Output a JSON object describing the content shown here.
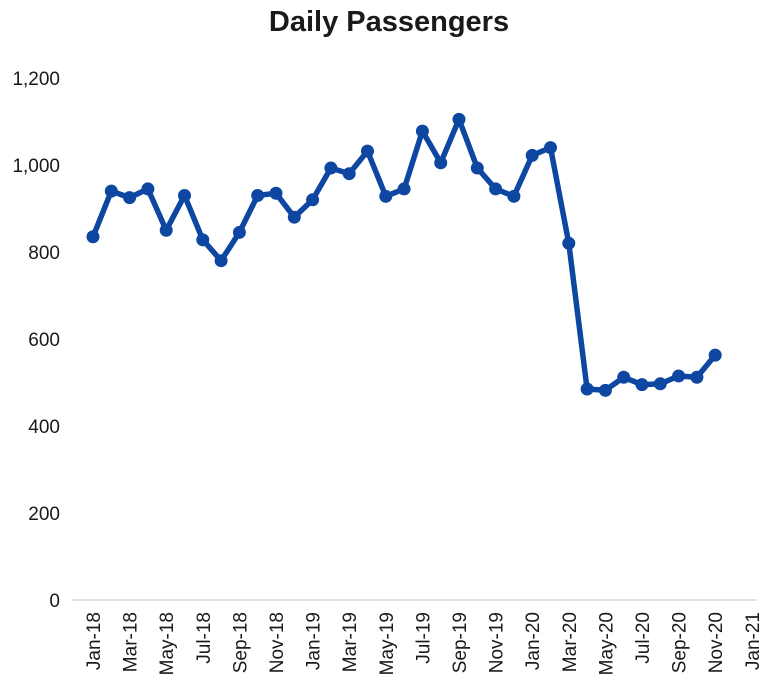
{
  "chart_data": {
    "type": "line",
    "title": "Daily Passengers",
    "xlabel": "",
    "ylabel": "",
    "ylim": [
      0,
      1200
    ],
    "yticks": [
      0,
      200,
      400,
      600,
      800,
      1000,
      1200
    ],
    "ytick_labels": [
      "0",
      "200",
      "400",
      "600",
      "800",
      "1,000",
      "1,200"
    ],
    "xtick_labels": [
      "Jan-18",
      "Mar-18",
      "May-18",
      "Jul-18",
      "Sep-18",
      "Nov-18",
      "Jan-19",
      "Mar-19",
      "May-19",
      "Jul-19",
      "Sep-19",
      "Nov-19",
      "Jan-20",
      "Mar-20",
      "May-20",
      "Jul-20",
      "Sep-20",
      "Nov-20",
      "Jan-21"
    ],
    "grid": false,
    "legend": "none",
    "color": "#0d47a1",
    "x": [
      "2018-01",
      "2018-02",
      "2018-03",
      "2018-04",
      "2018-05",
      "2018-06",
      "2018-07",
      "2018-08",
      "2018-09",
      "2018-10",
      "2018-11",
      "2018-12",
      "2019-01",
      "2019-02",
      "2019-03",
      "2019-04",
      "2019-05",
      "2019-06",
      "2019-07",
      "2019-08",
      "2019-09",
      "2019-10",
      "2019-11",
      "2019-12",
      "2020-01",
      "2020-02",
      "2020-03",
      "2020-04",
      "2020-05",
      "2020-06",
      "2020-07",
      "2020-08",
      "2020-09",
      "2020-10",
      "2020-11"
    ],
    "series": [
      {
        "values": [
          835,
          940,
          925,
          945,
          850,
          930,
          828,
          780,
          845,
          930,
          935,
          880,
          920,
          993,
          980,
          1032,
          928,
          945,
          1078,
          1005,
          1105,
          993,
          945,
          928,
          1022,
          1040,
          820,
          485,
          482,
          512,
          495,
          497,
          515,
          512,
          563
        ]
      }
    ]
  }
}
